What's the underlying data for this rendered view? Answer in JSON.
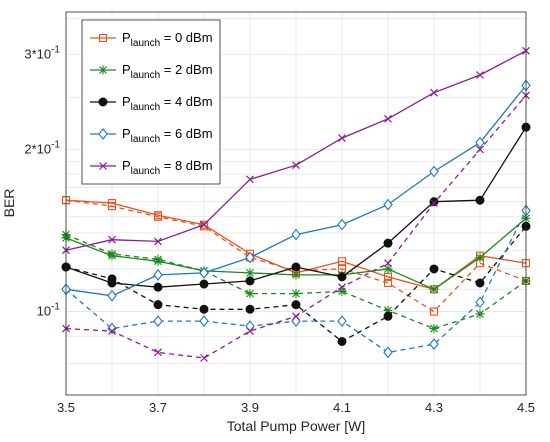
{
  "chart_data": {
    "type": "line",
    "xlabel": "Total Pump Power [W]",
    "ylabel": "BER",
    "xlim": [
      3.5,
      4.5
    ],
    "ylim": [
      0.07,
      0.36
    ],
    "yscale": "log",
    "grid": true,
    "legend_position": "top-left",
    "x_ticks": [
      "3.5",
      "3.7",
      "3.9",
      "4.1",
      "4.3",
      "4.5"
    ],
    "x_tick_values": [
      3.5,
      3.7,
      3.9,
      4.1,
      4.3,
      4.5
    ],
    "y_ticks": [
      "10^-1",
      "2*10^-1",
      "3*10^-1"
    ],
    "y_tick_values": [
      0.1,
      0.2,
      0.3
    ],
    "x": [
      3.5,
      3.6,
      3.7,
      3.8,
      3.9,
      4.0,
      4.1,
      4.2,
      4.3,
      4.4,
      4.5
    ],
    "series": [
      {
        "legend_base": "P",
        "legend_sub": "launch",
        "legend_rest": " = 0 dBm",
        "color": "#e8531f",
        "marker": "square",
        "solid": [
          0.161,
          0.159,
          0.151,
          0.145,
          0.128,
          0.118,
          0.124,
          0.116,
          0.11,
          0.127,
          0.123
        ],
        "dashed": [
          0.161,
          0.157,
          0.15,
          0.144,
          0.126,
          0.119,
          0.12,
          0.113,
          0.1,
          0.123,
          0.114
        ]
      },
      {
        "legend_base": "P",
        "legend_sub": "launch",
        "legend_rest": " = 2 dBm",
        "color": "#1a8a1a",
        "marker": "star",
        "solid": [
          0.137,
          0.127,
          0.124,
          0.119,
          0.118,
          0.117,
          0.117,
          0.12,
          0.11,
          0.126,
          0.149
        ],
        "dashed": [
          0.139,
          0.128,
          0.125,
          0.119,
          0.108,
          0.108,
          0.109,
          0.1005,
          0.093,
          0.099,
          0.114
        ]
      },
      {
        "legend_base": "P",
        "legend_sub": "launch",
        "legend_rest": " = 4 dBm",
        "color": "#111111",
        "marker": "circle",
        "solid": [
          0.121,
          0.113,
          0.111,
          0.1125,
          0.114,
          0.121,
          0.116,
          0.134,
          0.16,
          0.161,
          0.22
        ],
        "dashed": [
          0.121,
          0.115,
          0.103,
          0.101,
          0.101,
          0.103,
          0.088,
          0.098,
          0.12,
          0.113,
          0.144
        ]
      },
      {
        "legend_base": "P",
        "legend_sub": "launch",
        "legend_rest": " = 6 dBm",
        "color": "#1f77c4",
        "marker": "diamond",
        "solid": [
          0.11,
          0.107,
          0.117,
          0.118,
          0.126,
          0.139,
          0.145,
          0.158,
          0.182,
          0.206,
          0.263
        ],
        "dashed": [
          0.11,
          0.093,
          0.096,
          0.096,
          0.094,
          0.096,
          0.096,
          0.084,
          0.087,
          0.104,
          0.154
        ]
      },
      {
        "legend_base": "P",
        "legend_sub": "launch",
        "legend_rest": " = 8 dBm",
        "color": "#8b1c96",
        "marker": "x",
        "solid": [
          0.13,
          0.136,
          0.135,
          0.145,
          0.176,
          0.187,
          0.21,
          0.228,
          0.255,
          0.275,
          0.305
        ],
        "dashed": [
          0.093,
          0.092,
          0.084,
          0.082,
          0.092,
          0.098,
          0.111,
          0.123,
          0.159,
          0.2,
          0.252
        ]
      }
    ]
  }
}
